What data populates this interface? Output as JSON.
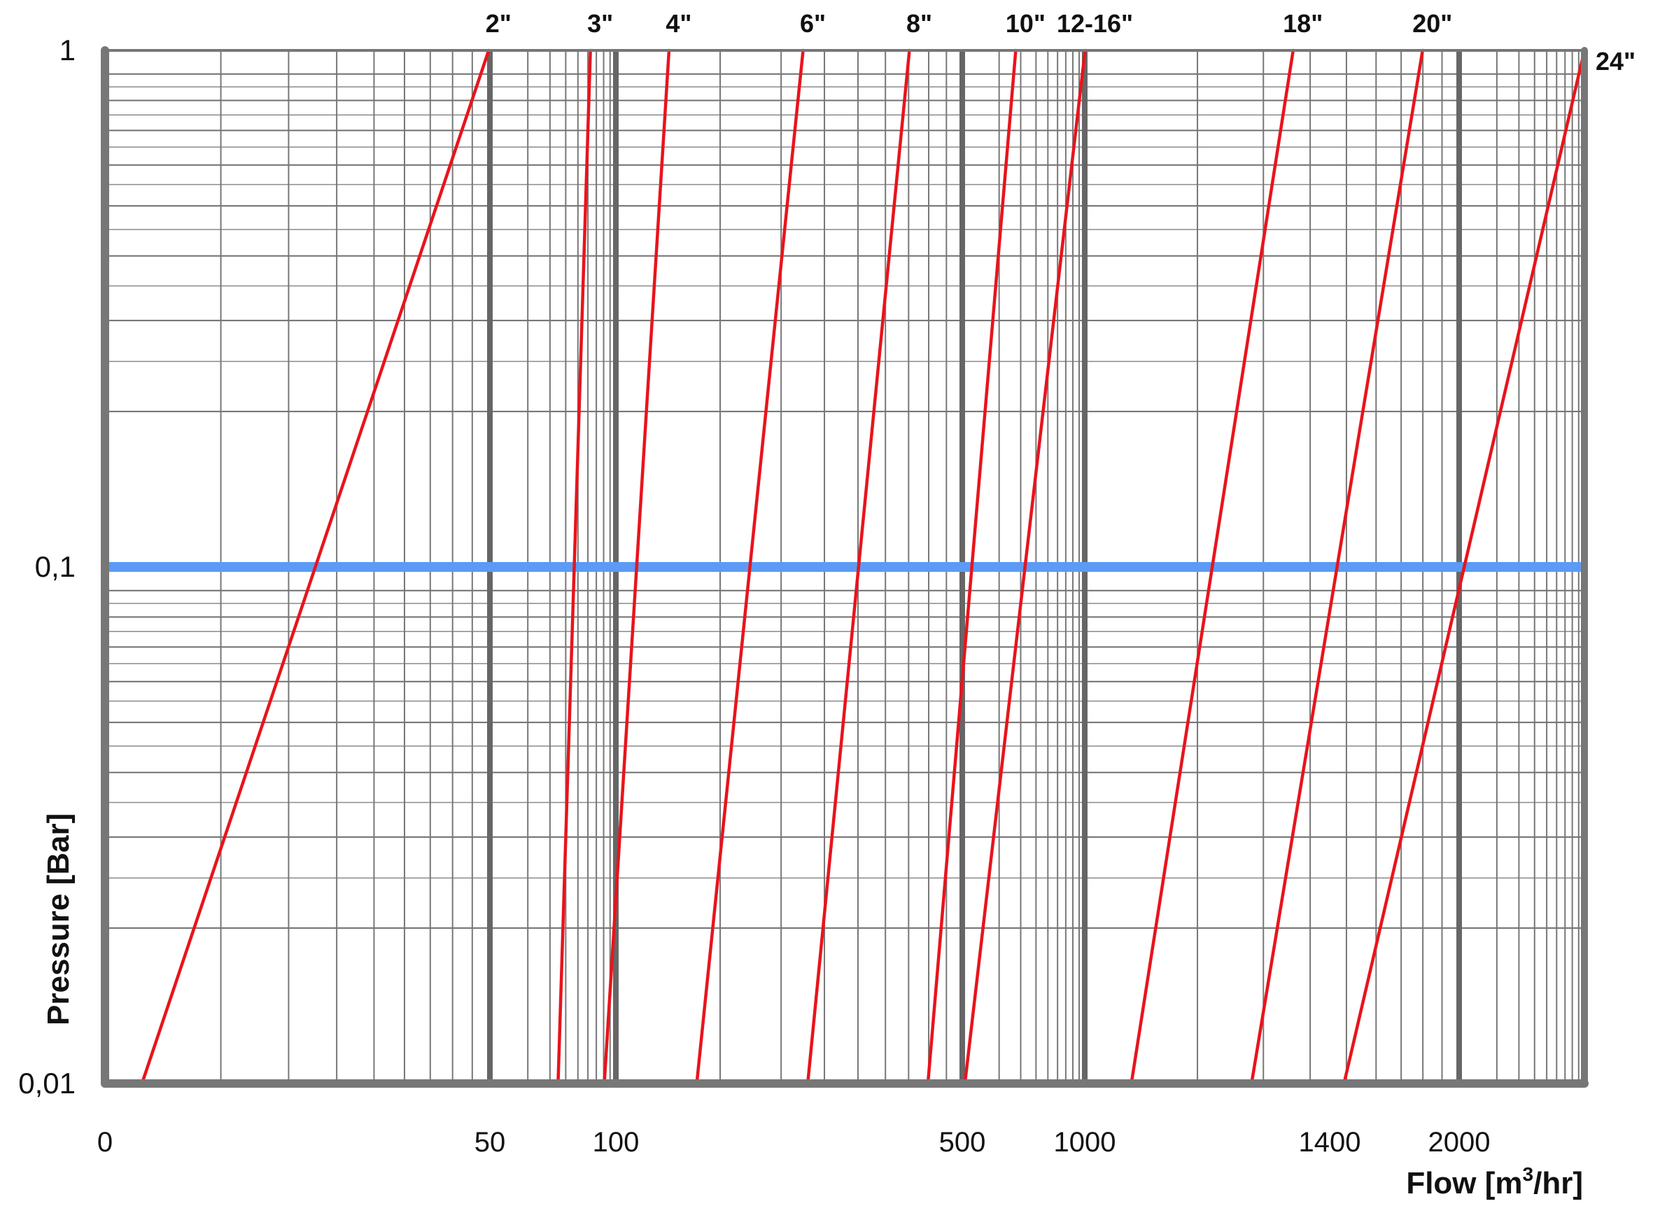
{
  "chart_data": {
    "type": "line",
    "xlabel": "Flow [m³/hr]",
    "ylabel": "Pressure [Bar]",
    "y_scale": "log",
    "ylim": [
      0.01,
      1
    ],
    "x_tick_labels": [
      "0",
      "50",
      "100",
      "500",
      "1000",
      "1400",
      "2000"
    ],
    "y_tick_labels": [
      "1",
      "0,1",
      "0,01"
    ],
    "grid": true,
    "reference_line": {
      "y": 0.1,
      "color": "#5b9bf5"
    },
    "series_color": "#e8141c",
    "series": [
      {
        "name": "2\"",
        "x": [
          0.08,
          0.83
        ],
        "y": [
          0.01,
          1
        ]
      },
      {
        "name": "3\"",
        "x": [
          0.98,
          1.05
        ],
        "y": [
          0.01,
          1
        ]
      },
      {
        "name": "4\"",
        "x": [
          1.08,
          1.22
        ],
        "y": [
          0.01,
          1
        ]
      },
      {
        "name": "6\"",
        "x": [
          1.28,
          1.51
        ],
        "y": [
          0.01,
          1
        ]
      },
      {
        "name": "8\"",
        "x": [
          1.52,
          1.74
        ],
        "y": [
          0.01,
          1
        ]
      },
      {
        "name": "10\"",
        "x": [
          1.78,
          1.97
        ],
        "y": [
          0.01,
          1
        ]
      },
      {
        "name": "12-16\"",
        "x": [
          1.86,
          2.12
        ],
        "y": [
          0.01,
          1
        ]
      },
      {
        "name": "18\"",
        "x": [
          2.22,
          2.57
        ],
        "y": [
          0.01,
          1
        ]
      },
      {
        "name": "20\"",
        "x": [
          2.48,
          2.85
        ],
        "y": [
          0.01,
          1
        ]
      },
      {
        "name": "24\"",
        "x": [
          2.68,
          3.2
        ],
        "y": [
          0.01,
          1
        ]
      }
    ]
  }
}
